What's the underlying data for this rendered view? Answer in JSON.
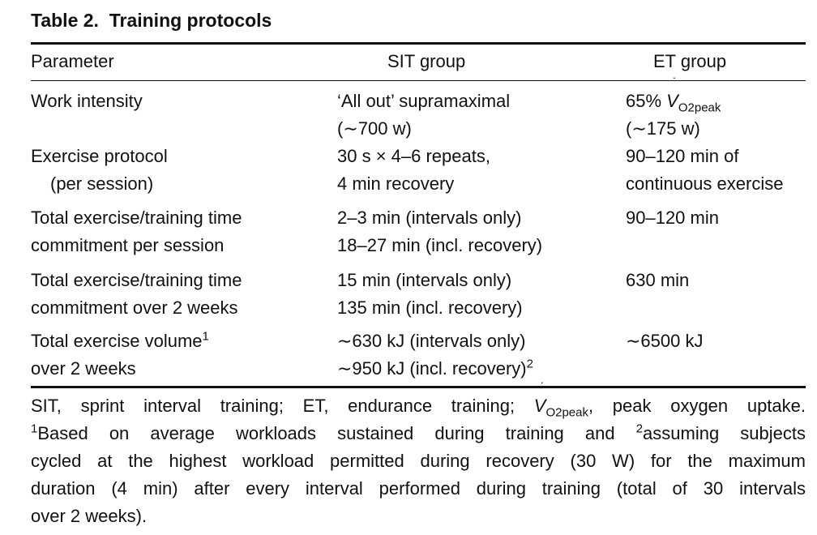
{
  "table": {
    "title": "Table 2.  Training protocols",
    "headers": [
      "Parameter",
      "SIT group",
      "ET group"
    ],
    "rows": [
      {
        "param": [
          "Work intensity"
        ],
        "sit": [
          "‘All out’ supramaximal",
          "(∼700 w)"
        ],
        "et_prefix": "65% ",
        "et_vo2": "V",
        "et_vo2_dot": "˙",
        "et_vo2_sub": "O2peak",
        "et_line2": "(∼175 w)"
      },
      {
        "param": [
          "Exercise protocol",
          "(per session)"
        ],
        "sit": [
          "30 s × 4–6 repeats,",
          "4 min recovery"
        ],
        "et": [
          "90–120 min of",
          "continuous exercise"
        ]
      },
      {
        "param": [
          "Total exercise/training time",
          "commitment per session"
        ],
        "sit": [
          "2–3 min (intervals only)",
          "18–27 min (incl. recovery)"
        ],
        "et": [
          "90–120 min"
        ]
      },
      {
        "param": [
          "Total exercise/training time",
          "commitment over 2 weeks"
        ],
        "sit": [
          "15 min (intervals only)",
          "135 min (incl. recovery)"
        ],
        "et": [
          "630 min"
        ]
      },
      {
        "param": [
          "Total exercise volume",
          "over 2 weeks"
        ],
        "param_sup": "1",
        "sit": [
          "∼630 kJ (intervals only)",
          "∼950 kJ (incl. recovery)"
        ],
        "sit_sup": "2",
        "et": [
          "∼6500 kJ"
        ]
      }
    ]
  },
  "footnote": {
    "l1_a": "SIT, sprint interval training; ET, endurance training; ",
    "l1_v": "V",
    "l1_dot": "˙",
    "l1_sub": "O2peak",
    "l1_b": ", peak oxygen uptake.",
    "l2_sup1": "1",
    "l2_a": "Based on average workloads sustained during training and ",
    "l2_sup2": "2",
    "l2_b": "assuming subjects",
    "l3": "cycled at the highest workload permitted during recovery (30 W) for the maximum",
    "l4": "duration (4 min) after every interval performed during training (total of 30 intervals",
    "l5": "over 2 weeks)."
  }
}
